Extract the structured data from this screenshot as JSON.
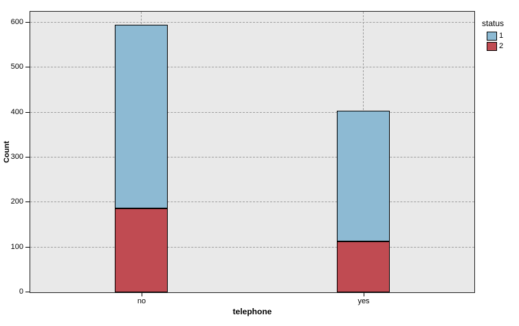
{
  "chart_data": {
    "type": "bar",
    "stacked": true,
    "title": "",
    "categories": [
      "no",
      "yes"
    ],
    "series": [
      {
        "name": "1",
        "color": "#8dbad3",
        "values": [
          409,
          291
        ]
      },
      {
        "name": "2",
        "color": "#c04b52",
        "values": [
          187,
          113
        ]
      }
    ],
    "stack_note": "series listed in legend order; first series drawn on top of stack",
    "xlabel": "telephone",
    "ylabel": "Count",
    "ylim": [
      0,
      600
    ],
    "yticks": [
      0,
      100,
      200,
      300,
      400,
      500,
      600
    ],
    "legend": {
      "title": "status",
      "position": "right",
      "entries": [
        "1",
        "2"
      ]
    },
    "grid": "dashed",
    "colors": {
      "plot_background": "#e9e9e9",
      "gridline": "#9d9d9d",
      "bar_border": "#000000",
      "frame": "#1f1f1f"
    }
  }
}
